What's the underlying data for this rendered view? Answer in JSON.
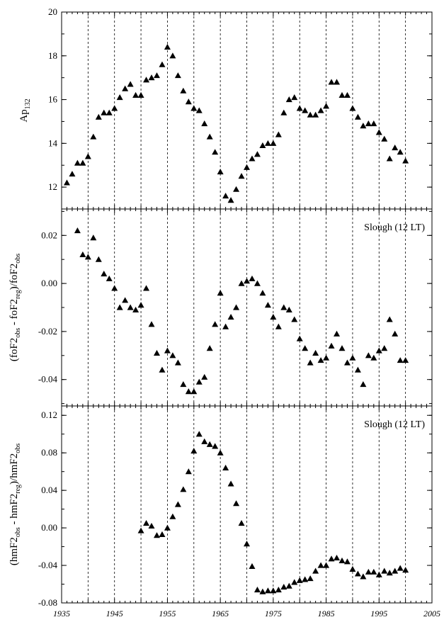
{
  "chart_data": [
    {
      "type": "scatter",
      "marker": "triangle",
      "ylabel": {
        "base": "Ap",
        "sub": "132"
      },
      "ylim": [
        11,
        20
      ],
      "yticks": [
        "12",
        "14",
        "16",
        "18",
        "20"
      ],
      "annotation": "",
      "x": [
        1936,
        1937,
        1938,
        1939,
        1940,
        1941,
        1942,
        1943,
        1944,
        1945,
        1946,
        1947,
        1948,
        1949,
        1950,
        1951,
        1952,
        1953,
        1954,
        1955,
        1956,
        1957,
        1958,
        1959,
        1960,
        1961,
        1962,
        1963,
        1964,
        1965,
        1966,
        1967,
        1968,
        1969,
        1970,
        1971,
        1972,
        1973,
        1974,
        1975,
        1976,
        1977,
        1978,
        1979,
        1980,
        1981,
        1982,
        1983,
        1984,
        1985,
        1986,
        1987,
        1988,
        1989,
        1990,
        1991,
        1992,
        1993,
        1994,
        1995,
        1996,
        1997,
        1998,
        1999,
        2000
      ],
      "y": [
        12.2,
        12.6,
        13.1,
        13.1,
        13.4,
        14.3,
        15.2,
        15.4,
        15.4,
        15.6,
        16.1,
        16.5,
        16.7,
        16.2,
        16.2,
        16.9,
        17.0,
        17.1,
        17.6,
        18.4,
        18.0,
        17.1,
        16.4,
        15.9,
        15.6,
        15.5,
        14.9,
        14.3,
        13.6,
        12.7,
        11.6,
        11.4,
        11.9,
        12.5,
        12.9,
        13.3,
        13.5,
        13.9,
        14.0,
        14.0,
        14.4,
        15.4,
        16.0,
        16.1,
        15.6,
        15.5,
        15.3,
        15.3,
        15.5,
        15.7,
        16.8,
        16.8,
        16.2,
        16.2,
        15.6,
        15.2,
        14.8,
        14.9,
        14.9,
        14.5,
        14.2,
        13.3,
        13.8,
        13.6,
        13.2
      ]
    },
    {
      "type": "scatter",
      "marker": "triangle",
      "ylabel": {
        "a": "(foF2",
        "b": "obs",
        "c": " - foF2",
        "d": "reg",
        "e": ")/foF2",
        "f": "obs"
      },
      "ylim": [
        -0.051,
        0.031
      ],
      "yticks": [
        "0.02",
        "0.00",
        "-0.02",
        "-0.04"
      ],
      "annotation": "Slough (12 LT)",
      "x": [
        1938,
        1939,
        1940,
        1941,
        1942,
        1943,
        1944,
        1945,
        1946,
        1947,
        1948,
        1949,
        1950,
        1951,
        1952,
        1953,
        1954,
        1955,
        1956,
        1957,
        1958,
        1959,
        1960,
        1961,
        1962,
        1963,
        1964,
        1965,
        1966,
        1967,
        1968,
        1969,
        1970,
        1971,
        1972,
        1973,
        1974,
        1975,
        1976,
        1977,
        1978,
        1979,
        1980,
        1981,
        1982,
        1983,
        1984,
        1985,
        1986,
        1987,
        1988,
        1989,
        1990,
        1991,
        1992,
        1993,
        1994,
        1995,
        1996,
        1997,
        1998,
        1999,
        2000
      ],
      "y": [
        0.022,
        0.012,
        0.011,
        0.019,
        0.01,
        0.004,
        0.002,
        -0.002,
        -0.01,
        -0.007,
        -0.01,
        -0.011,
        -0.009,
        -0.002,
        -0.017,
        -0.029,
        -0.036,
        -0.028,
        -0.03,
        -0.033,
        -0.042,
        -0.045,
        -0.045,
        -0.041,
        -0.039,
        -0.027,
        -0.017,
        -0.004,
        -0.018,
        -0.014,
        -0.01,
        -0.0,
        0.001,
        0.002,
        0.0,
        -0.004,
        -0.009,
        -0.014,
        -0.018,
        -0.01,
        -0.011,
        -0.015,
        -0.023,
        -0.027,
        -0.033,
        -0.029,
        -0.032,
        -0.031,
        -0.026,
        -0.021,
        -0.027,
        -0.033,
        -0.031,
        -0.036,
        -0.042,
        -0.03,
        -0.031,
        -0.028,
        -0.027,
        -0.015,
        -0.021,
        -0.032,
        -0.032
      ]
    },
    {
      "type": "scatter",
      "marker": "triangle",
      "ylabel": {
        "a": "(hmF2",
        "b": "obs",
        "c": " - hmF2",
        "d": "reg",
        "e": ")/hmF2",
        "f": "obs"
      },
      "ylim": [
        -0.08,
        0.13
      ],
      "yticks": [
        "0.12",
        "0.08",
        "0.04",
        "0.00",
        "-0.04",
        "-0.08"
      ],
      "annotation": "Slough (12 LT)",
      "x": [
        1950,
        1951,
        1952,
        1953,
        1954,
        1955,
        1956,
        1957,
        1958,
        1959,
        1960,
        1961,
        1962,
        1963,
        1964,
        1965,
        1966,
        1967,
        1968,
        1969,
        1970,
        1971,
        1972,
        1973,
        1974,
        1975,
        1976,
        1977,
        1978,
        1979,
        1980,
        1981,
        1982,
        1983,
        1984,
        1985,
        1986,
        1987,
        1988,
        1989,
        1990,
        1991,
        1992,
        1993,
        1994,
        1995,
        1996,
        1997,
        1998,
        1999,
        2000
      ],
      "y": [
        -0.003,
        0.005,
        0.002,
        -0.008,
        -0.007,
        0.0,
        0.012,
        0.025,
        0.041,
        0.06,
        0.082,
        0.1,
        0.092,
        0.089,
        0.087,
        0.08,
        0.064,
        0.047,
        0.026,
        0.005,
        -0.017,
        -0.041,
        -0.066,
        -0.068,
        -0.067,
        -0.067,
        -0.066,
        -0.063,
        -0.062,
        -0.058,
        -0.056,
        -0.055,
        -0.054,
        -0.046,
        -0.04,
        -0.04,
        -0.033,
        -0.032,
        -0.035,
        -0.036,
        -0.044,
        -0.049,
        -0.052,
        -0.047,
        -0.047,
        -0.05,
        -0.046,
        -0.048,
        -0.046,
        -0.043,
        -0.045
      ]
    }
  ],
  "xaxis": {
    "xlim": [
      1935,
      2005
    ],
    "ticks": [
      "1935",
      "1945",
      "1955",
      "1965",
      "1975",
      "1985",
      "1995",
      "2005"
    ],
    "gridlines": [
      1940,
      1945,
      1950,
      1955,
      1960,
      1965,
      1970,
      1975,
      1980,
      1985,
      1990,
      1995,
      2000
    ]
  }
}
